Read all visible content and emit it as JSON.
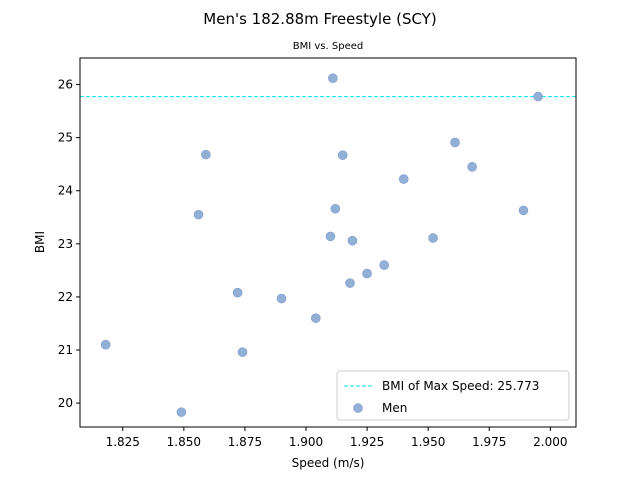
{
  "chart_data": {
    "type": "scatter",
    "title": "Men's 182.88m Freestyle (SCY)",
    "subtitle": "BMI vs. Speed",
    "xlabel": "Speed (m/s)",
    "ylabel": "BMI",
    "xlim": [
      1.8075,
      2.0105
    ],
    "ylim": [
      19.55,
      26.5
    ],
    "xticks": [
      "1.825",
      "1.850",
      "1.875",
      "1.900",
      "1.925",
      "1.950",
      "1.975",
      "2.000"
    ],
    "yticks": [
      "20",
      "21",
      "22",
      "23",
      "24",
      "25",
      "26"
    ],
    "grid": false,
    "legend_placement": "lower-right",
    "reference_line": {
      "label": "BMI of Max Speed: 25.773",
      "y": 25.773,
      "style": "dashed",
      "color": "#00e5ee"
    },
    "series": [
      {
        "name": "Men",
        "color": "#92b0d6",
        "points": [
          {
            "x": 1.818,
            "y": 21.1
          },
          {
            "x": 1.849,
            "y": 19.83
          },
          {
            "x": 1.856,
            "y": 23.55
          },
          {
            "x": 1.859,
            "y": 24.68
          },
          {
            "x": 1.872,
            "y": 22.08
          },
          {
            "x": 1.874,
            "y": 20.96
          },
          {
            "x": 1.89,
            "y": 21.97
          },
          {
            "x": 1.904,
            "y": 21.6
          },
          {
            "x": 1.91,
            "y": 23.14
          },
          {
            "x": 1.911,
            "y": 26.12
          },
          {
            "x": 1.912,
            "y": 23.66
          },
          {
            "x": 1.915,
            "y": 24.67
          },
          {
            "x": 1.918,
            "y": 22.26
          },
          {
            "x": 1.919,
            "y": 23.06
          },
          {
            "x": 1.925,
            "y": 22.44
          },
          {
            "x": 1.932,
            "y": 22.6
          },
          {
            "x": 1.94,
            "y": 24.22
          },
          {
            "x": 1.952,
            "y": 23.11
          },
          {
            "x": 1.961,
            "y": 24.91
          },
          {
            "x": 1.968,
            "y": 24.45
          },
          {
            "x": 1.989,
            "y": 23.63
          },
          {
            "x": 1.995,
            "y": 25.773
          }
        ]
      }
    ]
  }
}
